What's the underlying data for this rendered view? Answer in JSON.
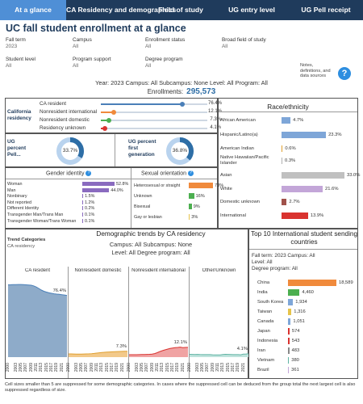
{
  "tabs": [
    "At a glance",
    "CA Residency and demographics",
    "Field of study",
    "UG entry level",
    "UG Pell receipt"
  ],
  "title": "UC fall student enrollment at a glance",
  "filters": [
    {
      "label": "Fall term",
      "value": "2023"
    },
    {
      "label": "Campus",
      "value": "All"
    },
    {
      "label": "Enrollment status",
      "value": "All"
    },
    {
      "label": "Broad field of study",
      "value": "All"
    },
    {
      "label": "Student level",
      "value": "All"
    },
    {
      "label": "Program support",
      "value": "All"
    },
    {
      "label": "Degree program",
      "value": "All"
    }
  ],
  "info_text": [
    "Notes,",
    "definitions, and",
    "data sources"
  ],
  "year_line": "Year: 2023  Campus: All   Subcampus: None  Level: All   Program: All",
  "enrollments_label": "Enrollments:",
  "enrollments_value": "295,573",
  "residency": {
    "title": "California residency",
    "rows": [
      {
        "label": "CA resident",
        "value": 76.4,
        "text": "76.4%",
        "color": "#4a7fb8"
      },
      {
        "label": "Nonresident international",
        "value": 12.1,
        "text": "12.1%",
        "color": "#f08a3c"
      },
      {
        "label": "Nonresident domestic",
        "value": 7.3,
        "text": "7.3%",
        "color": "#4caf50"
      },
      {
        "label": "Residency unknown",
        "value": 4.1,
        "text": "4.1%",
        "color": "#d9332f"
      }
    ]
  },
  "race": {
    "title": "Race/ethnicity",
    "rows": [
      {
        "label": "African American",
        "value": 4.7,
        "text": "4.7%",
        "color": "#7ea6d8"
      },
      {
        "label": "Hispanic/Latino(a)",
        "value": 23.3,
        "text": "23.3%",
        "color": "#7ea6d8"
      },
      {
        "label": "American Indian",
        "value": 0.6,
        "text": "0.6%",
        "color": "#e0a030"
      },
      {
        "label": "Native Hawaiian/Pacific Islander",
        "value": 0.3,
        "text": "0.3%",
        "color": "#b0b0b0"
      },
      {
        "label": "Asian",
        "value": 33.0,
        "text": "33.0%",
        "color": "#c0c0c0"
      },
      {
        "label": "White",
        "value": 21.6,
        "text": "21.6%",
        "color": "#c3a6d8"
      },
      {
        "label": "Domestic unknown",
        "value": 2.7,
        "text": "2.7%",
        "color": "#a0524b"
      },
      {
        "label": "International",
        "value": 13.9,
        "text": "13.9%",
        "color": "#d9332f"
      }
    ]
  },
  "pell": {
    "label": "UG percent Pell...",
    "value": 33.7,
    "text": "33.7%"
  },
  "firstgen": {
    "label": "UG percent first generation",
    "value": 36.8,
    "text": "36.8%"
  },
  "gender": {
    "title": "Gender identity",
    "rows": [
      {
        "label": "Woman",
        "value": 52.8,
        "text": "52.8%"
      },
      {
        "label": "Man",
        "value": 44.0,
        "text": "44.0%"
      },
      {
        "label": "Nonbinary",
        "value": 1.5,
        "text": "1.5%"
      },
      {
        "label": "Not reported",
        "value": 1.2,
        "text": "1.2%"
      },
      {
        "label": "Different Identity",
        "value": 0.2,
        "text": "0.2%"
      },
      {
        "label": "Transgender Man/Trans Man",
        "value": 0.1,
        "text": "0.1%"
      },
      {
        "label": "Transgender Woman/Trans Woman",
        "value": 0.1,
        "text": "0.1%"
      }
    ]
  },
  "orientation": {
    "title": "Sexual orientation",
    "rows": [
      {
        "label": "Heterosexual or straight",
        "value": 73,
        "text": "73%",
        "color": "#f08a3c"
      },
      {
        "label": "Unknown",
        "value": 16,
        "text": "16%",
        "color": "#4caf50"
      },
      {
        "label": "Bisexual",
        "value": 9,
        "text": "9%",
        "color": "#4caf50"
      },
      {
        "label": "Gay or lesbian",
        "value": 3,
        "text": "3%",
        "color": "#e6c34a"
      }
    ]
  },
  "trends": {
    "title": "Demographic trends by CA residency",
    "trend_cat_label": "Trend Categories",
    "trend_cat_value": "CA residency",
    "subtitle_1": "Campus: All   Subcampus: None",
    "subtitle_2": "Level: All   Degree program: All",
    "years": [
      "2000",
      "2001",
      "2002",
      "2003",
      "2004",
      "2005",
      "2006",
      "2007",
      "2008",
      "2009",
      "2010",
      "2011",
      "2012",
      "2013",
      "2014",
      "2015",
      "2016",
      "2017",
      "2018",
      "2019",
      "2020",
      "2021",
      "2022",
      "2023"
    ],
    "year_ticks": [
      "2000",
      "2003",
      "2005",
      "2007",
      "2009",
      "2011",
      "2013",
      "2015",
      "2017",
      "2019",
      "2021"
    ],
    "panels": [
      {
        "name": "CA resident",
        "end_label": "76.4%",
        "color": "#4a7fb8",
        "fill": "#8eabc9",
        "values": [
          89.5,
          89.6,
          89.8,
          89.8,
          89.9,
          89.9,
          89.7,
          89.5,
          89.3,
          89.0,
          88.2,
          86.8,
          85.0,
          83.0,
          81.5,
          80.5,
          79.6,
          79.0,
          78.4,
          78.0,
          77.7,
          77.3,
          76.9,
          76.4
        ]
      },
      {
        "name": "Nonresident domestic",
        "end_label": "7.3%",
        "color": "#e0a030",
        "fill": "#f2c98a",
        "values": [
          4.0,
          4.0,
          3.9,
          3.8,
          3.8,
          3.8,
          3.9,
          4.0,
          4.1,
          4.3,
          4.6,
          5.0,
          5.4,
          5.7,
          6.0,
          6.2,
          6.4,
          6.6,
          6.8,
          6.9,
          7.0,
          7.1,
          7.2,
          7.3
        ]
      },
      {
        "name": "Nonresident international",
        "end_label": "12.1%",
        "color": "#d9332f",
        "fill": "#f0a3a3",
        "values": [
          3.0,
          3.0,
          3.0,
          3.0,
          3.1,
          3.2,
          3.3,
          3.4,
          3.5,
          3.8,
          4.4,
          5.5,
          6.9,
          8.0,
          9.0,
          9.9,
          10.7,
          11.3,
          11.7,
          12.0,
          12.4,
          11.8,
          12.0,
          12.1
        ]
      },
      {
        "name": "Other/Unknown",
        "end_label": "4.1%",
        "color": "#5fb3a3",
        "fill": "#bfe3dc",
        "values": [
          3.5,
          3.4,
          3.3,
          3.4,
          3.2,
          3.1,
          3.1,
          3.1,
          3.1,
          2.9,
          2.8,
          2.7,
          2.7,
          3.3,
          3.5,
          3.4,
          3.3,
          3.1,
          3.1,
          3.1,
          2.9,
          3.8,
          3.9,
          4.1
        ]
      }
    ]
  },
  "intl": {
    "title": "Top 10 International student sending countries",
    "sub_1": "Fall term: 2023  Campus: All",
    "sub_2": "Level: All",
    "sub_3": "Degree program: All",
    "rows": [
      {
        "label": "China",
        "value": 18589,
        "text": "18,589",
        "color": "#f08a3c"
      },
      {
        "label": "India",
        "value": 4460,
        "text": "4,460",
        "color": "#4caf50"
      },
      {
        "label": "South Korea",
        "value": 1934,
        "text": "1,934",
        "color": "#7ea6d8"
      },
      {
        "label": "Taiwan",
        "value": 1316,
        "text": "1,316",
        "color": "#e6c34a"
      },
      {
        "label": "Canada",
        "value": 1051,
        "text": "1,051",
        "color": "#7ea6d8"
      },
      {
        "label": "Japan",
        "value": 574,
        "text": "574",
        "color": "#d9332f"
      },
      {
        "label": "Indonesia",
        "value": 543,
        "text": "543",
        "color": "#d9332f"
      },
      {
        "label": "Iran",
        "value": 483,
        "text": "483",
        "color": "#888888"
      },
      {
        "label": "Vietnam",
        "value": 380,
        "text": "380",
        "color": "#5fb3a3"
      },
      {
        "label": "Brazil",
        "value": 361,
        "text": "361",
        "color": "#c3a6d8"
      }
    ]
  },
  "footnote": "Cell sizes smaller than 5 are suppressed for some demographic categories. In cases where the suppressed cell can be deduced from the group total the next largest cell is also suppressed regardless of size."
}
